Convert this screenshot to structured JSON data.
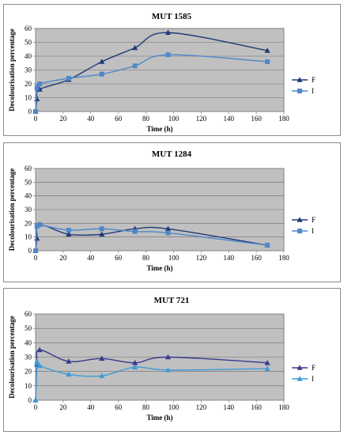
{
  "chart_data": [
    {
      "type": "line",
      "title": "MUT 1585",
      "xlabel": "Time (h)",
      "ylabel": "Decolourisation percentage",
      "xlim": [
        0,
        180
      ],
      "ylim": [
        0,
        60
      ],
      "xticks": [
        "0",
        "20",
        "40",
        "60",
        "80",
        "100",
        "120",
        "140",
        "160",
        "180"
      ],
      "yticks": [
        "0",
        "10",
        "20",
        "30",
        "40",
        "50",
        "60"
      ],
      "grid": true,
      "legend": "right",
      "series": [
        {
          "name": "F",
          "marker": "triangle",
          "color": "#1f3a78",
          "x": [
            0,
            1,
            3,
            24,
            48,
            72,
            96,
            168
          ],
          "y": [
            0,
            9,
            16,
            23,
            36,
            46,
            57,
            44
          ]
        },
        {
          "name": "I",
          "marker": "square",
          "color": "#4f87c9",
          "x": [
            0,
            1,
            3,
            24,
            48,
            72,
            96,
            168
          ],
          "y": [
            0,
            17,
            20,
            24,
            27,
            33,
            41,
            36
          ]
        }
      ]
    },
    {
      "type": "line",
      "title": "MUT 1284",
      "xlabel": "Time (h)",
      "ylabel": "Decolourisation percentage",
      "xlim": [
        0,
        180
      ],
      "ylim": [
        0,
        60
      ],
      "xticks": [
        "0",
        "20",
        "40",
        "60",
        "80",
        "100",
        "120",
        "140",
        "160",
        "180"
      ],
      "yticks": [
        "0",
        "10",
        "20",
        "30",
        "40",
        "50",
        "60"
      ],
      "grid": true,
      "legend": "right",
      "series": [
        {
          "name": "F",
          "marker": "triangle",
          "color": "#1f3a78",
          "x": [
            0,
            1,
            3,
            24,
            48,
            72,
            96,
            168
          ],
          "y": [
            0,
            9,
            19,
            12,
            12,
            16,
            16,
            4
          ]
        },
        {
          "name": "I",
          "marker": "square",
          "color": "#4f87c9",
          "x": [
            0,
            1,
            3,
            24,
            48,
            72,
            96,
            168
          ],
          "y": [
            0,
            18,
            19,
            15,
            16,
            14,
            13,
            4
          ]
        }
      ]
    },
    {
      "type": "line",
      "title": "MUT 721",
      "xlabel": "Time (h)",
      "ylabel": "Decolourisation percentage",
      "xlim": [
        0,
        180
      ],
      "ylim": [
        0,
        60
      ],
      "xticks": [
        "0",
        "20",
        "40",
        "60",
        "80",
        "100",
        "120",
        "140",
        "160",
        "180"
      ],
      "yticks": [
        "0",
        "10",
        "20",
        "30",
        "40",
        "50",
        "60"
      ],
      "grid": true,
      "legend": "right",
      "series": [
        {
          "name": "F",
          "marker": "triangle",
          "color": "#3a3a8f",
          "x": [
            0,
            1,
            3,
            24,
            48,
            72,
            96,
            168
          ],
          "y": [
            0,
            25,
            35,
            27,
            29,
            26,
            30,
            26
          ]
        },
        {
          "name": "I",
          "marker": "triangle",
          "color": "#3f9bd6",
          "x": [
            0,
            1,
            3,
            24,
            48,
            72,
            96,
            168
          ],
          "y": [
            0,
            27,
            24,
            18,
            17,
            23,
            21,
            22
          ]
        }
      ]
    }
  ]
}
